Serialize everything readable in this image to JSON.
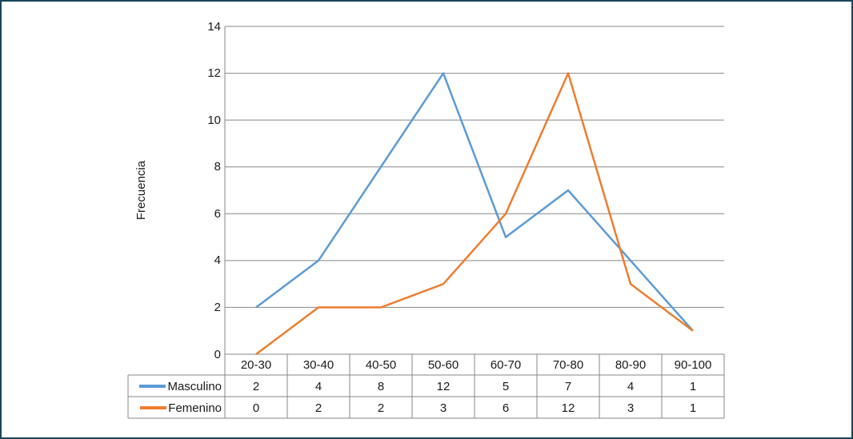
{
  "chart_data": {
    "type": "line",
    "categories": [
      "20-30",
      "30-40",
      "40-50",
      "50-60",
      "60-70",
      "70-80",
      "80-90",
      "90-100"
    ],
    "series": [
      {
        "name": "Masculino",
        "values": [
          2,
          4,
          8,
          12,
          5,
          7,
          4,
          1
        ],
        "color": "#5B9BD5"
      },
      {
        "name": "Femenino",
        "values": [
          0,
          2,
          2,
          3,
          6,
          12,
          3,
          1
        ],
        "color": "#ED7D31"
      }
    ],
    "ylabel": "Frecuencia",
    "ylim": [
      0,
      14
    ],
    "yticks": [
      0,
      2,
      4,
      6,
      8,
      10,
      12,
      14
    ],
    "grid": true,
    "legend_position": "data-table-left",
    "colors": {
      "gridline": "#878787",
      "axis": "#878787",
      "table_border": "#878787",
      "text": "#1a1a1a",
      "frame_border": "#17465a",
      "background": "#ffffff"
    }
  }
}
